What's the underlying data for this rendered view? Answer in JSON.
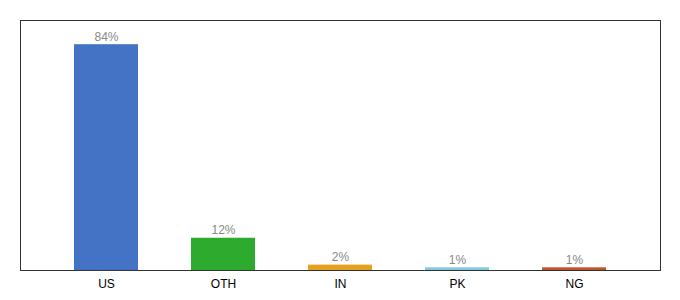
{
  "chart_data": {
    "type": "bar",
    "categories": [
      "US",
      "OTH",
      "IN",
      "PK",
      "NG"
    ],
    "values": [
      84,
      12,
      2,
      1,
      1
    ],
    "value_labels": [
      "84%",
      "12%",
      "2%",
      "1%",
      "1%"
    ],
    "colors": [
      "#4472c4",
      "#2eaa2e",
      "#e8a020",
      "#7ec8e3",
      "#c0552a"
    ],
    "ylim": [
      0,
      93
    ],
    "data_labels": true,
    "tick_labels": "x"
  }
}
